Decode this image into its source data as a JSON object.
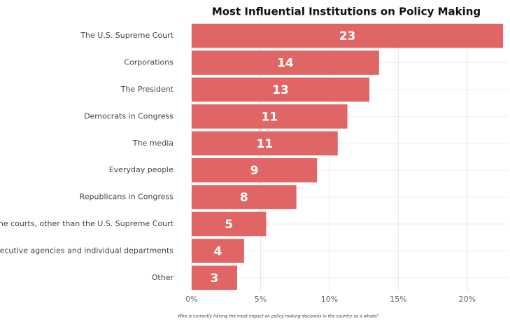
{
  "chart_data": {
    "type": "bar",
    "orientation": "horizontal",
    "title": "Most Influential Institutions on Policy Making",
    "caption": "Who is currently having the most impact on policy making decisions in the country as a whole?",
    "categories": [
      "The U.S. Supreme Court",
      "Corporations",
      "The President",
      "Democrats in Congress",
      "The media",
      "Everyday people",
      "Republicans in Congress",
      "The courts, other than the U.S. Supreme Court",
      "Executive agencies and individual departments",
      "Other"
    ],
    "values": [
      22.6,
      13.6,
      12.9,
      11.3,
      10.6,
      9.1,
      7.6,
      5.4,
      3.8,
      3.3
    ],
    "value_labels": [
      "23",
      "14",
      "13",
      "11",
      "11",
      "9",
      "8",
      "5",
      "4",
      "3"
    ],
    "color": "#e06666",
    "xlim": [
      0,
      23
    ],
    "xticks": [
      {
        "value": 0,
        "label": "0%"
      },
      {
        "value": 5,
        "label": "5%"
      },
      {
        "value": 10,
        "label": "10%"
      },
      {
        "value": 15,
        "label": "15%"
      },
      {
        "value": 20,
        "label": "20%"
      }
    ],
    "grid": true
  }
}
